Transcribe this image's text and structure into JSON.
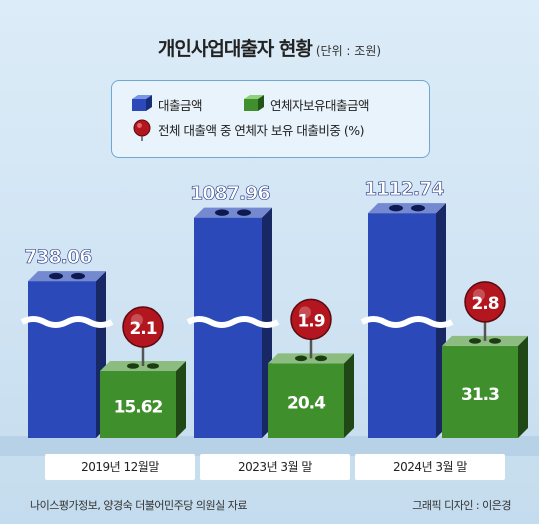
{
  "header": {
    "title": "개인사업대출자 현황",
    "unit": "(단위 : 조원)"
  },
  "legend": {
    "items": [
      {
        "label": "대출금액",
        "color": "#2b49b8"
      },
      {
        "label": "연체자보유대출금액",
        "color": "#3f8f2c"
      },
      {
        "label": "전체 대출액 중 연체자 보유 대출비중 (%)",
        "color": "#b3161e"
      }
    ]
  },
  "chart_data": {
    "type": "bar",
    "title": "개인사업대출자 현황",
    "unit": "(단위 : 조원)",
    "categories": [
      "2019년 12월말",
      "2023년 3월 말",
      "2024년 3월 말"
    ],
    "series": [
      {
        "name": "대출금액",
        "values": [
          738.06,
          1087.96,
          1112.74
        ],
        "color": "#2b49b8"
      },
      {
        "name": "연체자보유대출금액",
        "values": [
          15.62,
          20.4,
          31.3
        ],
        "color": "#3f8f2c"
      },
      {
        "name": "전체 대출액 중 연체자 보유 대출비중 (%)",
        "values": [
          2.1,
          1.9,
          2.8
        ],
        "color": "#b3161e"
      }
    ],
    "labels": {
      "loan": [
        "738.06",
        "1087.96",
        "1112.74"
      ],
      "delinquent": [
        "15.62",
        "20.4",
        "31.3"
      ],
      "ratio": [
        "2.1",
        "1.9",
        "2.8"
      ]
    },
    "axis_break": true,
    "grid": false,
    "legend_position": "top"
  },
  "footer": {
    "source": "나이스평가정보, 양경숙 더불어민주당 의원실 자료",
    "credit": "그래픽 디자인 : 이은경"
  }
}
